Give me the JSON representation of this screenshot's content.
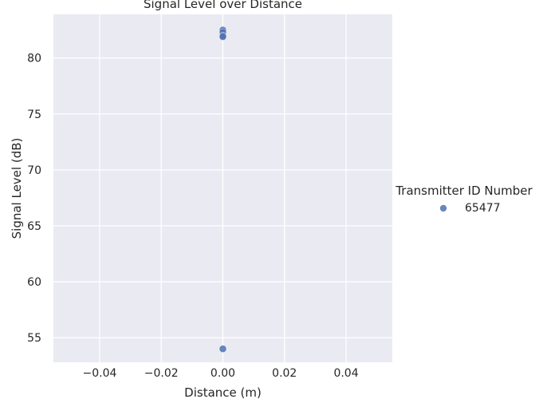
{
  "chart_data": {
    "type": "scatter",
    "title": "Signal Level over Distance",
    "xlabel": "Distance (m)",
    "ylabel": "Signal Level (dB)",
    "xlim": [
      -0.055,
      0.055
    ],
    "ylim": [
      52.8,
      83.9
    ],
    "x_ticks": [
      -0.04,
      -0.02,
      0.0,
      0.02,
      0.04
    ],
    "x_tick_labels": [
      "−0.04",
      "−0.02",
      "0.00",
      "0.02",
      "0.04"
    ],
    "y_ticks": [
      55,
      60,
      65,
      70,
      75,
      80
    ],
    "y_tick_labels": [
      "55",
      "60",
      "65",
      "70",
      "75",
      "80"
    ],
    "grid": true,
    "legend": {
      "title": "Transmitter ID Number",
      "placement": "right",
      "entries": [
        "65477"
      ]
    },
    "series": [
      {
        "name": "65477",
        "color": "#4c72b0",
        "points": [
          {
            "x": 0.0,
            "y": 82.5
          },
          {
            "x": 0.0,
            "y": 82.3
          },
          {
            "x": 0.0,
            "y": 82.0
          },
          {
            "x": 0.0,
            "y": 81.9
          },
          {
            "x": 0.0,
            "y": 54.0
          }
        ]
      }
    ]
  }
}
